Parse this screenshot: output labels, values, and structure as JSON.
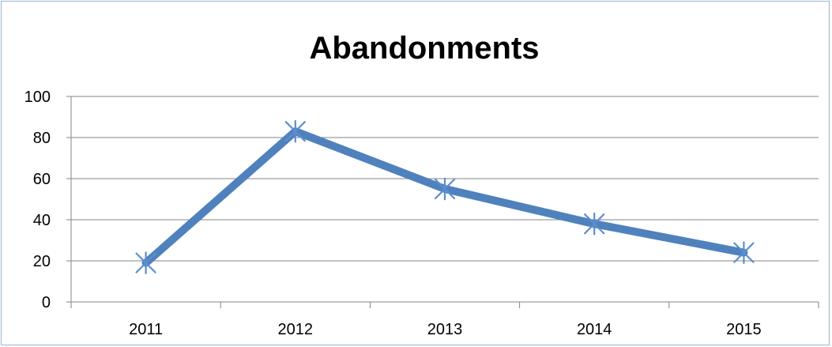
{
  "chart_data": {
    "type": "line",
    "title": "Abandonments",
    "xlabel": "",
    "ylabel": "",
    "categories": [
      "2011",
      "2012",
      "2013",
      "2014",
      "2015"
    ],
    "series": [
      {
        "values": [
          19,
          83,
          55,
          38,
          24
        ],
        "color": "#4f81bd",
        "marker": "star"
      }
    ],
    "ylim": [
      0,
      100
    ],
    "yticks": [
      0,
      20,
      40,
      60,
      80,
      100
    ],
    "grid": true,
    "legend": "none"
  }
}
